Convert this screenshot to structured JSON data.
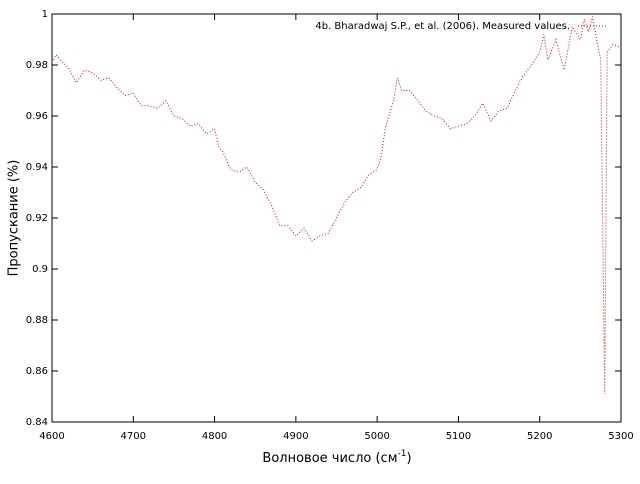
{
  "chart_data": {
    "type": "line",
    "x_label": "Волновое число (см",
    "x_label_sup": "-1",
    "x_label_end": ")",
    "y_label": "Пропускание (%)",
    "xlim": [
      4600,
      5300
    ],
    "xticks": [
      4600,
      4700,
      4800,
      4900,
      5000,
      5100,
      5200,
      5300
    ],
    "ylim": [
      0.84,
      1
    ],
    "yticks": [
      0.84,
      0.86,
      0.88,
      0.9,
      0.92,
      0.94,
      0.96,
      0.98,
      1
    ],
    "legend": "top-right",
    "x": [
      4600,
      4605,
      4610,
      4620,
      4630,
      4640,
      4650,
      4660,
      4670,
      4680,
      4690,
      4700,
      4710,
      4720,
      4730,
      4740,
      4750,
      4760,
      4770,
      4780,
      4790,
      4800,
      4805,
      4810,
      4820,
      4830,
      4840,
      4850,
      4860,
      4870,
      4880,
      4890,
      4900,
      4910,
      4920,
      4930,
      4940,
      4950,
      4960,
      4970,
      4980,
      4990,
      5000,
      5005,
      5010,
      5020,
      5025,
      5030,
      5040,
      5050,
      5060,
      5070,
      5080,
      5090,
      5100,
      5110,
      5120,
      5130,
      5140,
      5150,
      5160,
      5170,
      5180,
      5190,
      5200,
      5205,
      5210,
      5220,
      5230,
      5240,
      5250,
      5255,
      5260,
      5265,
      5270,
      5275,
      5280,
      5283,
      5290,
      5300
    ],
    "series": [
      {
        "name": "4b. Bharadwaj S.P., et al. (2006). Measured values.",
        "color": "#ff0000",
        "values": [
          0.981,
          0.984,
          0.982,
          0.979,
          0.973,
          0.978,
          0.977,
          0.974,
          0.975,
          0.971,
          0.968,
          0.969,
          0.964,
          0.964,
          0.963,
          0.966,
          0.96,
          0.959,
          0.956,
          0.957,
          0.953,
          0.955,
          0.948,
          0.946,
          0.939,
          0.938,
          0.94,
          0.934,
          0.931,
          0.925,
          0.917,
          0.917,
          0.913,
          0.916,
          0.911,
          0.913,
          0.914,
          0.92,
          0.926,
          0.93,
          0.932,
          0.937,
          0.939,
          0.944,
          0.955,
          0.966,
          0.975,
          0.97,
          0.97,
          0.966,
          0.962,
          0.96,
          0.959,
          0.955,
          0.956,
          0.957,
          0.96,
          0.965,
          0.958,
          0.962,
          0.963,
          0.97,
          0.976,
          0.98,
          0.985,
          0.992,
          0.982,
          0.99,
          0.978,
          0.995,
          0.99,
          0.998,
          0.993,
          0.999,
          0.99,
          0.982,
          0.851,
          0.985,
          0.988,
          0.987
        ]
      }
    ]
  }
}
